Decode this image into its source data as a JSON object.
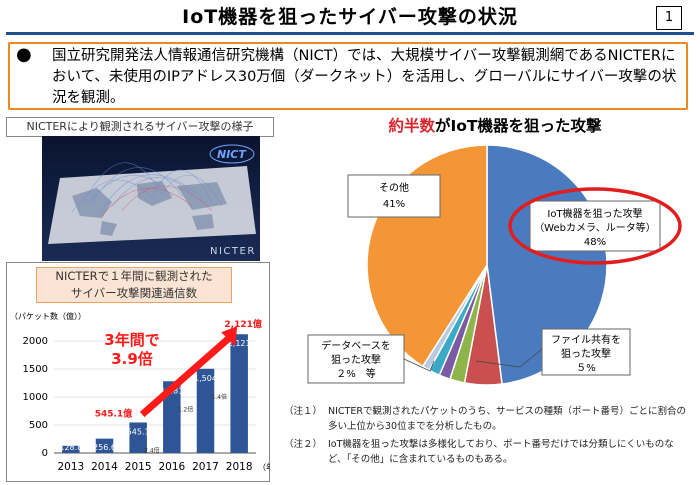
{
  "slide": {
    "title": "IoT機器を狙ったサイバー攻撃の状況",
    "page_number": "1"
  },
  "intro": {
    "bullet": "●",
    "text": "国立研究開発法人情報通信研究機構（NICT）では、大規模サイバー攻撃観測網であるNICTERにおいて、未使用のIPアドレス30万個（ダークネット）を活用し、グローバルにサイバー攻撃の状況を観測。"
  },
  "map_panel": {
    "caption": "NICTERにより観測されるサイバー攻撃の様子",
    "logo_text": "NICTER",
    "logo_badge": "NICT"
  },
  "bar_panel": {
    "title_line1": "NICTERで１年間に観測された",
    "title_line2": "サイバー攻撃関連通信数",
    "callout_line1": "3年間で",
    "callout_line2": "3.9倍",
    "start_label": "545.1億",
    "end_label": "2,121億",
    "colors": {
      "bar": "#2e5596",
      "callout": "#ff1a1a",
      "arrow": "#ff1a1a"
    }
  },
  "pie_panel": {
    "title_highlight": "約半数",
    "title_rest": "がIoT機器を狙った攻撃",
    "labels": {
      "iot": [
        "IoT機器を狙った攻撃",
        "（Webカメラ、ルータ等）",
        "48%"
      ],
      "other": [
        "その他",
        "41%"
      ],
      "file_share": [
        "ファイル共有を",
        "狙った攻撃",
        "５%"
      ],
      "database": [
        "データベースを",
        "狙った攻撃",
        "２%　等"
      ]
    },
    "highlight_ring_color": "#e21d1d"
  },
  "notes": [
    {
      "tag": "（注１）",
      "text": "NICTERで観測されたパケットのうち、サービスの種類（ポート番号）ごとに割合の多い上位から30位までを分析したもの。"
    },
    {
      "tag": "（注２）",
      "text": "IoT機器を狙った攻撃は多様化しており、ポート番号だけでは分類しにくいものなど、「その他」に含まれているものもある。"
    }
  ],
  "chart_data": [
    {
      "type": "bar",
      "title": "NICTERで１年間に観測されたサイバー攻撃関連通信数",
      "ylabel": "（パケット数（億））",
      "xlabel": "（年）",
      "categories": [
        "2013",
        "2014",
        "2015",
        "2016",
        "2017",
        "2018"
      ],
      "values": [
        128.8,
        256.6,
        545.1,
        1281,
        1504,
        2121
      ],
      "value_labels": [
        "128.8",
        "256.6",
        "545.1",
        "1,281",
        "1,504",
        "2,121"
      ],
      "growth_labels": [
        "",
        "",
        "2.4倍",
        "1.2倍",
        "1.4倍",
        ""
      ],
      "ylim": [
        0,
        2000
      ],
      "yticks": [
        0,
        500,
        1000,
        1500,
        2000
      ],
      "ytick_labels": [
        "0",
        "500",
        "1000",
        "1500",
        "2000"
      ],
      "color": "#2e5596"
    },
    {
      "type": "pie",
      "title": "約半数がIoT機器を狙った攻撃",
      "slices": [
        {
          "name": "IoT機器を狙った攻撃",
          "value": 48,
          "color": "#4a7bbf"
        },
        {
          "name": "ファイル共有を狙った攻撃",
          "value": 5,
          "color": "#c9504e"
        },
        {
          "name": "データベースを狙った攻撃",
          "value": 2,
          "color": "#8fb44a"
        },
        {
          "name": "",
          "value": 1.5,
          "color": "#7a5ba3"
        },
        {
          "name": "",
          "value": 1.5,
          "color": "#39a9c5"
        },
        {
          "name": "",
          "value": 1,
          "color": "#b9c9e0"
        },
        {
          "name": "その他",
          "value": 41,
          "color": "#f49536"
        }
      ]
    }
  ]
}
